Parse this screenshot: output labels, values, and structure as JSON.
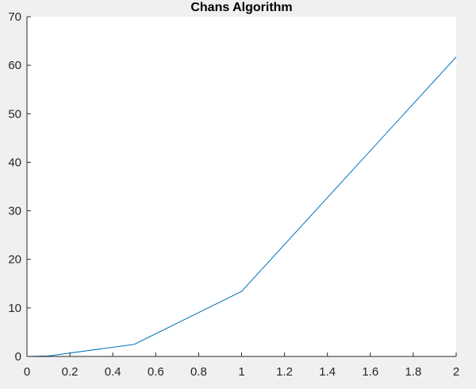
{
  "chart_data": {
    "type": "line",
    "title": "Chans Algorithm",
    "xlabel": "",
    "ylabel": "",
    "xlim": [
      0,
      2
    ],
    "ylim": [
      0,
      70
    ],
    "x_ticks": [
      0,
      0.2,
      0.4,
      0.6,
      0.8,
      1,
      1.2,
      1.4,
      1.6,
      1.8,
      2
    ],
    "x_tick_labels": [
      "0",
      "0.2",
      "0.4",
      "0.6",
      "0.8",
      "1",
      "1.2",
      "1.4",
      "1.6",
      "1.8",
      "2"
    ],
    "y_ticks": [
      0,
      10,
      20,
      30,
      40,
      50,
      60,
      70
    ],
    "y_tick_labels": [
      "0",
      "10",
      "20",
      "30",
      "40",
      "50",
      "60",
      "70"
    ],
    "grid": false,
    "legend": "none",
    "series": [
      {
        "color": "#0072bd",
        "x": [
          0,
          0.1,
          0.5,
          1,
          2
        ],
        "y": [
          0,
          0.1,
          2.5,
          13.4,
          61.7
        ]
      }
    ]
  }
}
